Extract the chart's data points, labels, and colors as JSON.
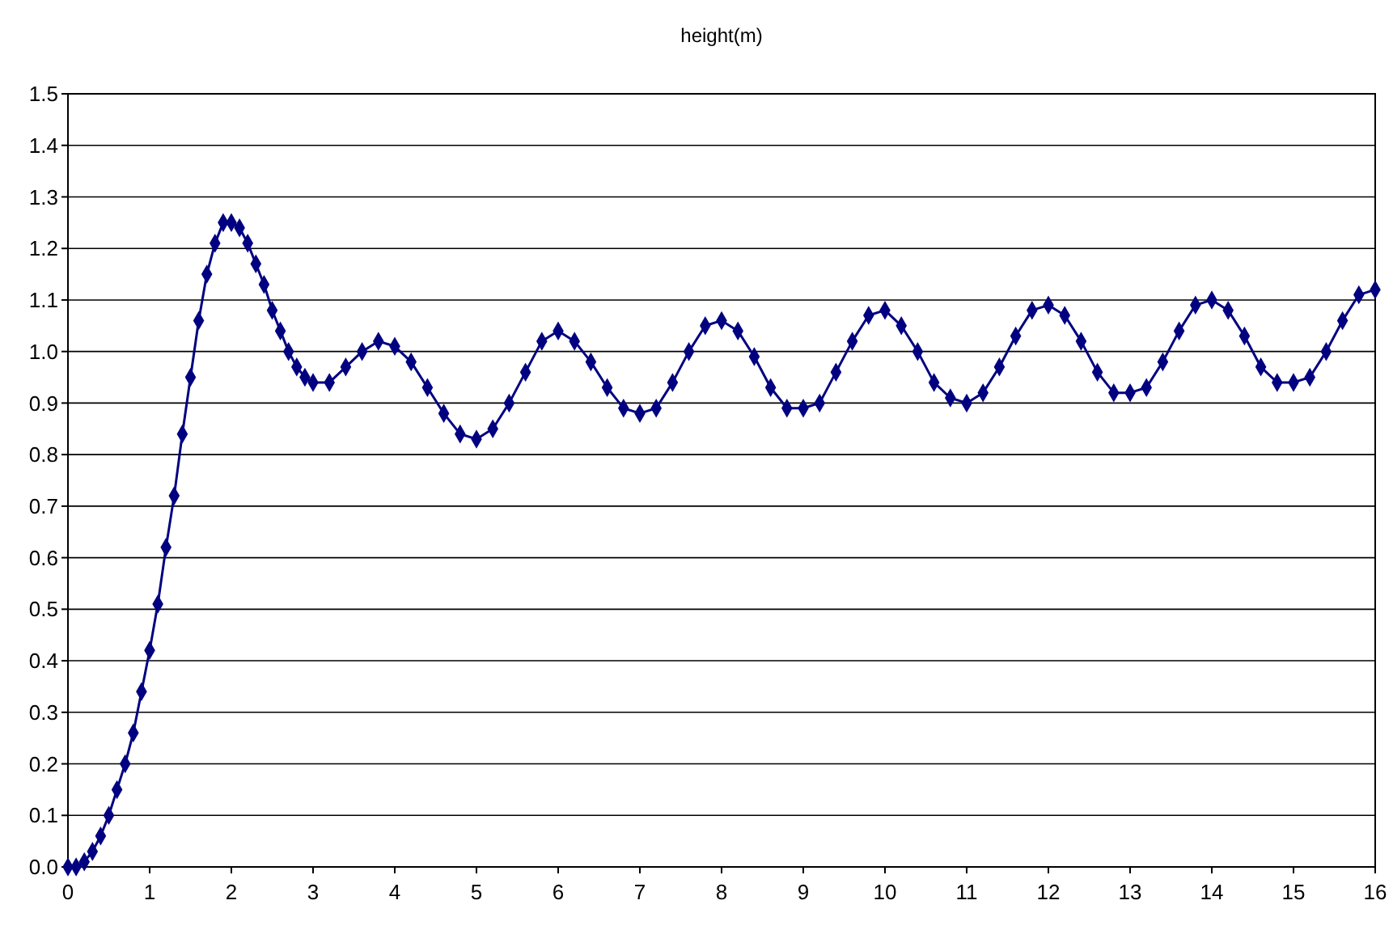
{
  "chart_data": {
    "type": "line",
    "title": "height(m)",
    "marker": "diamond",
    "line_style": "solid",
    "grid": "y",
    "x": [
      0,
      0.1,
      0.2,
      0.3,
      0.4,
      0.5,
      0.6,
      0.7,
      0.8,
      0.9,
      1.0,
      1.1,
      1.2,
      1.3,
      1.4,
      1.5,
      1.6,
      1.7,
      1.8,
      1.9,
      2.0,
      2.1,
      2.2,
      2.3,
      2.4,
      2.5,
      2.6,
      2.7,
      2.8,
      2.9,
      3.0,
      3.2,
      3.4,
      3.6,
      3.8,
      4.0,
      4.2,
      4.4,
      4.6,
      4.8,
      5.0,
      5.2,
      5.4,
      5.6,
      5.8,
      6.0,
      6.2,
      6.4,
      6.6,
      6.8,
      7.0,
      7.2,
      7.4,
      7.6,
      7.8,
      8.0,
      8.2,
      8.4,
      8.6,
      8.8,
      9.0,
      9.2,
      9.4,
      9.6,
      9.8,
      10.0,
      10.2,
      10.4,
      10.6,
      10.8,
      11.0,
      11.2,
      11.4,
      11.6,
      11.8,
      12.0,
      12.2,
      12.4,
      12.6,
      12.8,
      13.0,
      13.2,
      13.4,
      13.6,
      13.8,
      14.0,
      14.2,
      14.4,
      14.6,
      14.8,
      15.0,
      15.2,
      15.4,
      15.6,
      15.8,
      16.0
    ],
    "series": [
      {
        "color": "#000080",
        "values": [
          0,
          0.0,
          0.01,
          0.03,
          0.06,
          0.1,
          0.15,
          0.2,
          0.26,
          0.34,
          0.42,
          0.51,
          0.62,
          0.72,
          0.84,
          0.95,
          1.06,
          1.15,
          1.21,
          1.25,
          1.25,
          1.24,
          1.21,
          1.17,
          1.13,
          1.08,
          1.04,
          1.0,
          0.97,
          0.95,
          0.94,
          0.94,
          0.97,
          1.0,
          1.02,
          1.01,
          0.98,
          0.93,
          0.88,
          0.84,
          0.83,
          0.85,
          0.9,
          0.96,
          1.02,
          1.04,
          1.02,
          0.98,
          0.93,
          0.89,
          0.88,
          0.89,
          0.94,
          1.0,
          1.05,
          1.06,
          1.04,
          0.99,
          0.93,
          0.89,
          0.89,
          0.9,
          0.96,
          1.02,
          1.07,
          1.08,
          1.05,
          1.0,
          0.94,
          0.91,
          0.9,
          0.92,
          0.97,
          1.03,
          1.08,
          1.09,
          1.07,
          1.02,
          0.96,
          0.92,
          0.92,
          0.93,
          0.98,
          1.04,
          1.09,
          1.1,
          1.08,
          1.03,
          0.97,
          0.94,
          0.94,
          0.95,
          1.0,
          1.06,
          1.11,
          1.12
        ]
      }
    ],
    "xlim": [
      0,
      16
    ],
    "xticks": [
      0,
      1,
      2,
      3,
      4,
      5,
      6,
      7,
      8,
      9,
      10,
      11,
      12,
      13,
      14,
      15,
      16
    ],
    "ylim": [
      0,
      1.5
    ],
    "yticks": [
      {
        "value": 0,
        "label": "0.0"
      },
      0.1,
      0.2,
      0.3,
      0.4,
      0.5,
      0.6,
      0.7,
      0.8,
      0.9,
      {
        "value": 1,
        "label": "1.0"
      },
      1.1,
      1.2,
      1.3,
      1.4,
      1.5
    ]
  }
}
